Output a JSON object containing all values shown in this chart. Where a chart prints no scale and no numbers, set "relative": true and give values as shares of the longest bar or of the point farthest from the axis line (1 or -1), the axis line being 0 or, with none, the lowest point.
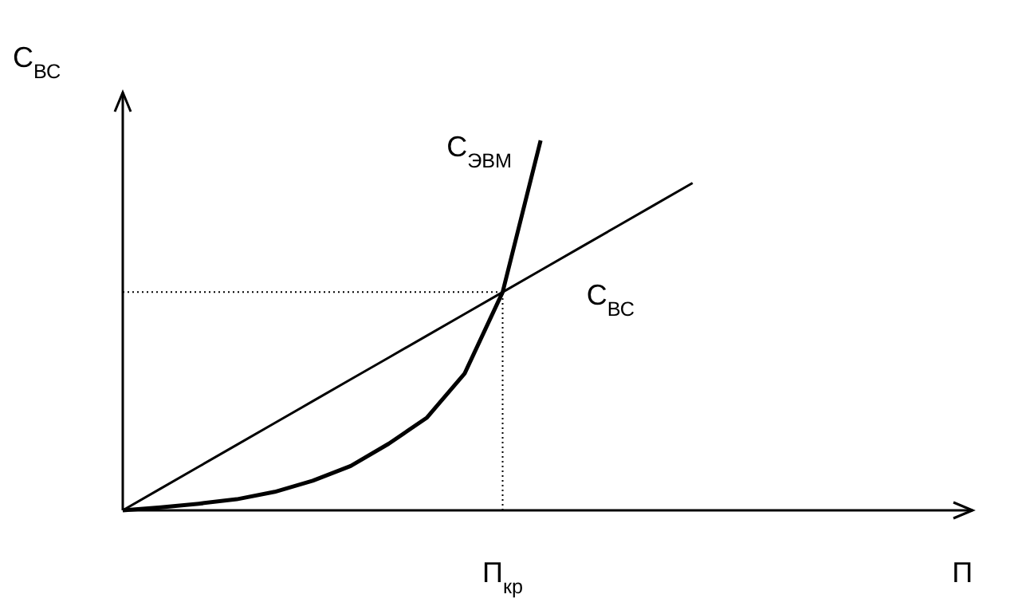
{
  "chart_data": {
    "type": "line",
    "relative": true,
    "ylabel": "С$_{ВС}$",
    "line_style": "solid",
    "categories": [
      null,
      null,
      null,
      null,
      null,
      null,
      null,
      null,
      null,
      null,
      null,
      null,
      null,
      null,
      null,
      null
    ],
    "series": [
      {
        "name": "С$_{ЭВМ}$",
        "color": "#000000",
        "values": [
          0,
          0.008,
          0.018,
          0.03,
          0.05,
          0.08,
          0.12,
          0.18,
          0.25,
          0.37,
          0.59,
          1,
          null,
          null,
          null,
          null
        ]
      },
      {
        "name": "С$_{ВС}$",
        "color": "#000000",
        "values": [
          0,
          0.059,
          0.118,
          0.177,
          0.236,
          0.295,
          0.354,
          0.413,
          0.472,
          0.531,
          0.59,
          0.649,
          0.708,
          0.767,
          0.826,
          0.885
        ]
      }
    ],
    "ref_lines": [
      {
        "axis": "y",
        "value": 0.59,
        "line_style": "dotted"
      }
    ],
    "annotations": [
      "П$_{кр}$",
      "П"
    ]
  }
}
